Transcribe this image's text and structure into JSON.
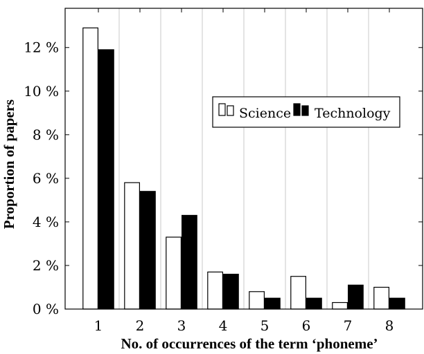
{
  "chart_data": {
    "type": "bar",
    "xlabel": "No. of occurrences of the term ‘phoneme’",
    "ylabel": "Proportion of papers",
    "categories": [
      "1",
      "2",
      "3",
      "4",
      "5",
      "6",
      "7",
      "8"
    ],
    "y_ticks": [
      0,
      2,
      4,
      6,
      8,
      10,
      12
    ],
    "y_tick_labels": [
      "0 %",
      "2 %",
      "4 %",
      "6 %",
      "8 %",
      "10 %",
      "12 %"
    ],
    "ylim": [
      0,
      13.8
    ],
    "xlim": [
      0.2,
      8.8
    ],
    "grid": "vertical",
    "legend_position": "center-right",
    "series": [
      {
        "name": "Science",
        "color": "#ffffff",
        "values": [
          12.9,
          5.8,
          3.3,
          1.7,
          0.8,
          1.5,
          0.3,
          1.0
        ]
      },
      {
        "name": "Technology",
        "color": "#000000",
        "values": [
          11.9,
          5.4,
          4.3,
          1.6,
          0.5,
          0.5,
          1.1,
          0.5
        ]
      }
    ]
  }
}
